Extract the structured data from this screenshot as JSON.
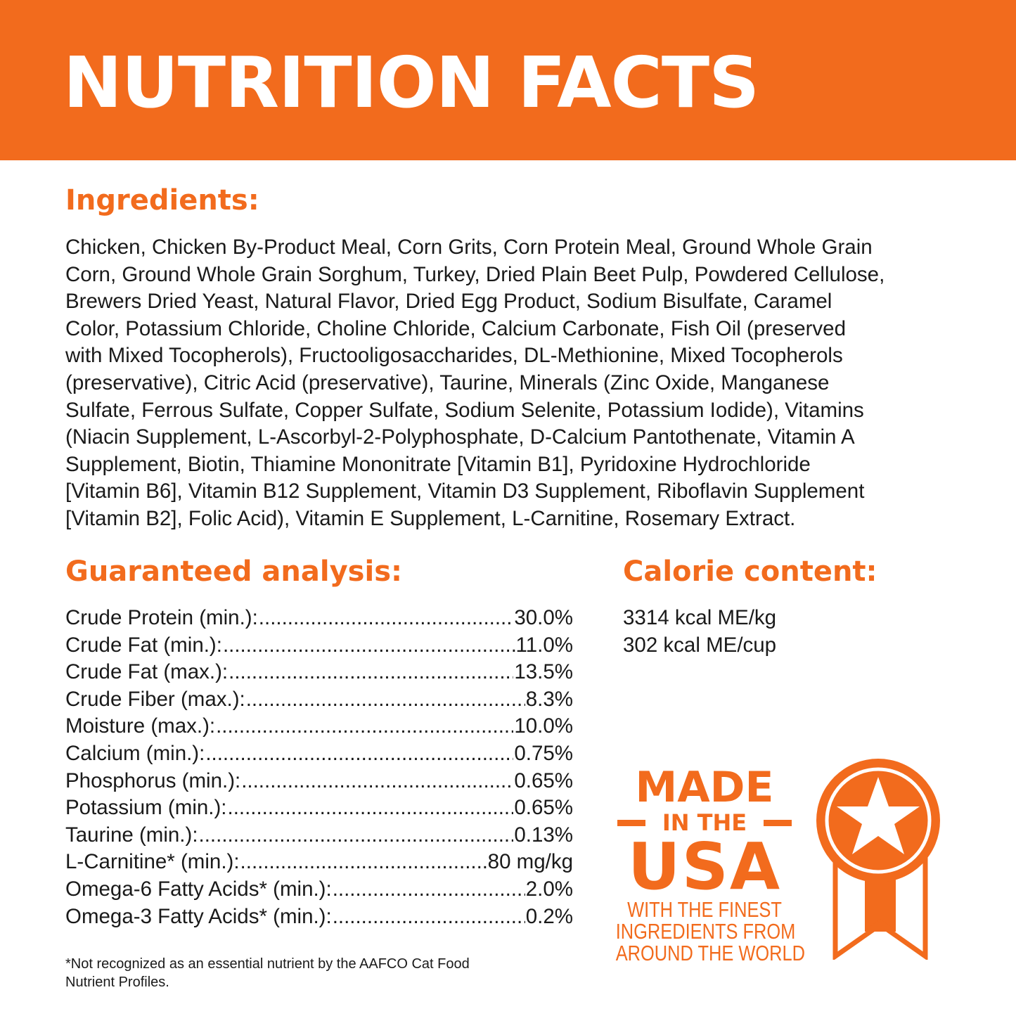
{
  "header": {
    "title": "NUTRITION FACTS"
  },
  "ingredients": {
    "heading": "Ingredients:",
    "lines": [
      "Chicken, Chicken By-Product Meal, Corn Grits, Corn Protein Meal, Ground Whole Grain",
      "Corn, Ground Whole Grain Sorghum, Turkey, Dried Plain Beet Pulp, Powdered Cellulose,",
      "Brewers Dried Yeast, Natural Flavor, Dried Egg Product, Sodium Bisulfate, Caramel",
      "Color, Potassium Chloride, Choline Chloride, Calcium Carbonate, Fish Oil (preserved",
      "with Mixed Tocopherols), Fructooligosaccharides, DL-Methionine, Mixed Tocopherols",
      "(preservative), Citric Acid (preservative), Taurine, Minerals (Zinc Oxide, Manganese",
      "Sulfate, Ferrous Sulfate, Copper Sulfate, Sodium Selenite, Potassium Iodide), Vitamins",
      "(Niacin Supplement, L-Ascorbyl-2-Polyphosphate, D-Calcium Pantothenate, Vitamin A",
      "Supplement, Biotin, Thiamine Mononitrate [Vitamin B1], Pyridoxine Hydrochloride",
      "[Vitamin B6], Vitamin B12 Supplement, Vitamin D3 Supplement, Riboflavin Supplement",
      "[Vitamin B2], Folic Acid), Vitamin E Supplement, L-Carnitine, Rosemary Extract."
    ]
  },
  "analysis": {
    "heading": "Guaranteed analysis:",
    "rows": [
      {
        "label": "Crude Protein (min.):",
        "value": "30.0%"
      },
      {
        "label": "Crude Fat (min.):",
        "value": "11.0%"
      },
      {
        "label": "Crude Fat (max.):",
        "value": "13.5%"
      },
      {
        "label": "Crude Fiber (max.):",
        "value": "8.3%"
      },
      {
        "label": "Moisture (max.):",
        "value": "10.0%"
      },
      {
        "label": "Calcium (min.):",
        "value": "0.75%"
      },
      {
        "label": "Phosphorus (min.):",
        "value": "0.65%"
      },
      {
        "label": "Potassium (min.):",
        "value": "0.65%"
      },
      {
        "label": "Taurine (min.):",
        "value": "0.13%"
      },
      {
        "label": "L-Carnitine* (min.):",
        "value": "80 mg/kg"
      },
      {
        "label": "Omega-6 Fatty Acids* (min.):",
        "value": "2.0%"
      },
      {
        "label": "Omega-3 Fatty Acids* (min.):",
        "value": "0.2%"
      }
    ],
    "footnote_lines": [
      "*Not recognized as an essential nutrient by the AAFCO Cat Food",
      "Nutrient Profiles."
    ]
  },
  "calories": {
    "heading": "Calorie content:",
    "lines": [
      "3314 kcal ME/kg",
      "302 kcal ME/cup"
    ]
  },
  "badge": {
    "made": "MADE",
    "in_the": "IN THE",
    "usa": "USA",
    "tagline": [
      "WITH THE FINEST",
      "INGREDIENTS FROM",
      "AROUND THE WORLD"
    ],
    "icon": "medal-star-icon"
  },
  "colors": {
    "accent": "#F26B1D",
    "text": "#1a1a1a",
    "background": "#ffffff"
  }
}
